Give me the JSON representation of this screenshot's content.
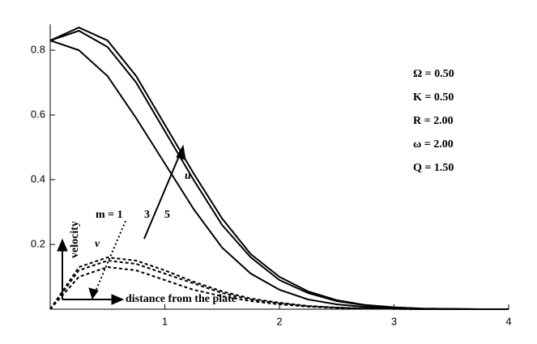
{
  "chart_data": {
    "type": "line",
    "x": [
      0,
      0.25,
      0.5,
      0.75,
      1,
      1.25,
      1.5,
      1.75,
      2,
      2.25,
      2.5,
      2.75,
      3,
      3.25,
      3.5,
      3.75,
      4
    ],
    "series": [
      {
        "color": "#000000",
        "style": "solid",
        "values": [
          0.83,
          0.8,
          0.72,
          0.59,
          0.45,
          0.31,
          0.19,
          0.11,
          0.06,
          0.03,
          0.015,
          0.007,
          0.003,
          0.001,
          0,
          0,
          0
        ]
      },
      {
        "color": "#000000",
        "style": "solid",
        "values": [
          0.83,
          0.86,
          0.81,
          0.7,
          0.55,
          0.4,
          0.26,
          0.16,
          0.09,
          0.05,
          0.025,
          0.012,
          0.005,
          0.002,
          0.001,
          0,
          0
        ]
      },
      {
        "color": "#000000",
        "style": "solid",
        "values": [
          0.83,
          0.87,
          0.83,
          0.72,
          0.57,
          0.42,
          0.28,
          0.17,
          0.1,
          0.055,
          0.028,
          0.013,
          0.006,
          0.002,
          0.001,
          0,
          0
        ]
      },
      {
        "color": "#000000",
        "style": "dashed",
        "values": [
          0,
          0.1,
          0.13,
          0.12,
          0.09,
          0.06,
          0.04,
          0.025,
          0.015,
          0.008,
          0.004,
          0.002,
          0.001,
          0,
          0,
          0,
          0
        ]
      },
      {
        "color": "#000000",
        "style": "dashed",
        "values": [
          0,
          0.12,
          0.15,
          0.14,
          0.11,
          0.08,
          0.05,
          0.03,
          0.018,
          0.009,
          0.005,
          0.002,
          0.001,
          0,
          0,
          0,
          0
        ]
      },
      {
        "color": "#000000",
        "style": "dashed",
        "values": [
          0,
          0.13,
          0.16,
          0.15,
          0.12,
          0.085,
          0.055,
          0.033,
          0.02,
          0.01,
          0.005,
          0.002,
          0.001,
          0,
          0,
          0,
          0
        ]
      }
    ],
    "xlim": [
      0,
      4
    ],
    "xticks": [
      1,
      2,
      3,
      4
    ],
    "ylim": [
      0,
      0.88
    ],
    "yticks": [
      0.2,
      0.4,
      0.6,
      0.8
    ],
    "annotations": {
      "parameters": [
        "Ω = 0.50",
        "K = 0.50",
        "R = 2.00",
        "ω = 2.00",
        "Q = 1.50"
      ],
      "u_label": "u",
      "v_label": "v",
      "m_label": "m = 1",
      "m3": "3",
      "m5": "5",
      "y_axis_label": "velocity",
      "x_axis_label": "distance from the plate"
    }
  }
}
